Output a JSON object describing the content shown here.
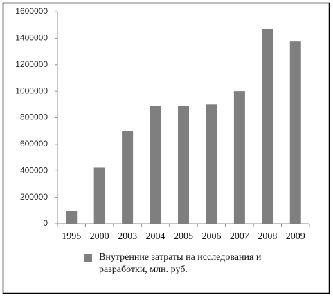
{
  "chart_data": {
    "type": "bar",
    "categories": [
      "1995",
      "2000",
      "2003",
      "2004",
      "2005",
      "2006",
      "2007",
      "2008",
      "2009"
    ],
    "series": [
      {
        "name": "Внутренние затраты на исследования и разработки, млн. руб.",
        "color": "#7f7f7f",
        "values": [
          95000,
          425000,
          700000,
          888000,
          888000,
          900000,
          1000000,
          1470000,
          1375000
        ]
      }
    ],
    "ylim": [
      0,
      1600000
    ],
    "yticks": [
      0,
      200000,
      400000,
      600000,
      800000,
      1000000,
      1200000,
      1400000,
      1600000
    ],
    "grid": false,
    "legend": "bottom"
  }
}
